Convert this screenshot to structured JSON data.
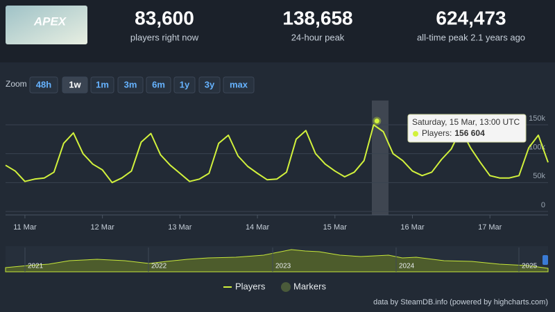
{
  "header": {
    "logo_text": "APEX",
    "stats": [
      {
        "value": "83,600",
        "label": "players right now"
      },
      {
        "value": "138,658",
        "label": "24-hour peak"
      },
      {
        "value": "624,473",
        "label": "all-time peak 2.1 years ago"
      }
    ]
  },
  "zoom": {
    "label": "Zoom",
    "buttons": [
      "48h",
      "1w",
      "1m",
      "3m",
      "6m",
      "1y",
      "3y",
      "max"
    ],
    "active": "1w"
  },
  "chart_data": {
    "type": "line",
    "categories": [
      null,
      null,
      "11 Mar",
      null,
      null,
      null,
      null,
      null,
      null,
      null,
      "12 Mar",
      null,
      null,
      null,
      null,
      null,
      null,
      null,
      "13 Mar",
      null,
      null,
      null,
      null,
      null,
      null,
      null,
      "14 Mar",
      null,
      null,
      null,
      null,
      null,
      null,
      null,
      "15 Mar",
      null,
      null,
      null,
      null,
      null,
      null,
      null,
      "16 Mar",
      null,
      null,
      null,
      null,
      null,
      null,
      null,
      "17 Mar",
      null,
      null,
      null,
      null,
      null,
      null
    ],
    "series": [
      {
        "name": "Players",
        "color": "#d2f23c",
        "values": [
          80000,
          70000,
          52000,
          56000,
          58000,
          68000,
          118000,
          136000,
          100000,
          82000,
          72000,
          50000,
          58000,
          70000,
          120000,
          135000,
          98000,
          80000,
          66000,
          52000,
          56000,
          66000,
          118000,
          132000,
          96000,
          78000,
          66000,
          55000,
          56000,
          68000,
          125000,
          140000,
          100000,
          82000,
          70000,
          60000,
          68000,
          88000,
          150000,
          138000,
          100000,
          88000,
          70000,
          62000,
          68000,
          90000,
          108000,
          142000,
          110000,
          85000,
          62000,
          58000,
          58000,
          62000,
          110000,
          132000,
          85000
        ]
      }
    ],
    "markers_legend": {
      "name": "Markers",
      "color": "#4a5a3a"
    },
    "ylim": [
      0,
      192000
    ],
    "yticks": [
      0,
      {
        "value": 50000,
        "label": "50k"
      },
      {
        "value": 100000,
        "label": "100k"
      },
      {
        "value": 150000,
        "label": "150k"
      }
    ],
    "grid": true,
    "tooltip": {
      "title": "Saturday, 15 Mar, 13:00 UTC",
      "series_label": "Players:",
      "value": 156604,
      "value_label": "156 604"
    },
    "navigator_labels": [
      "2021",
      "2022",
      "2023",
      "2024",
      "2025"
    ],
    "credit": "data by SteamDB.info (powered by highcharts.com)"
  }
}
